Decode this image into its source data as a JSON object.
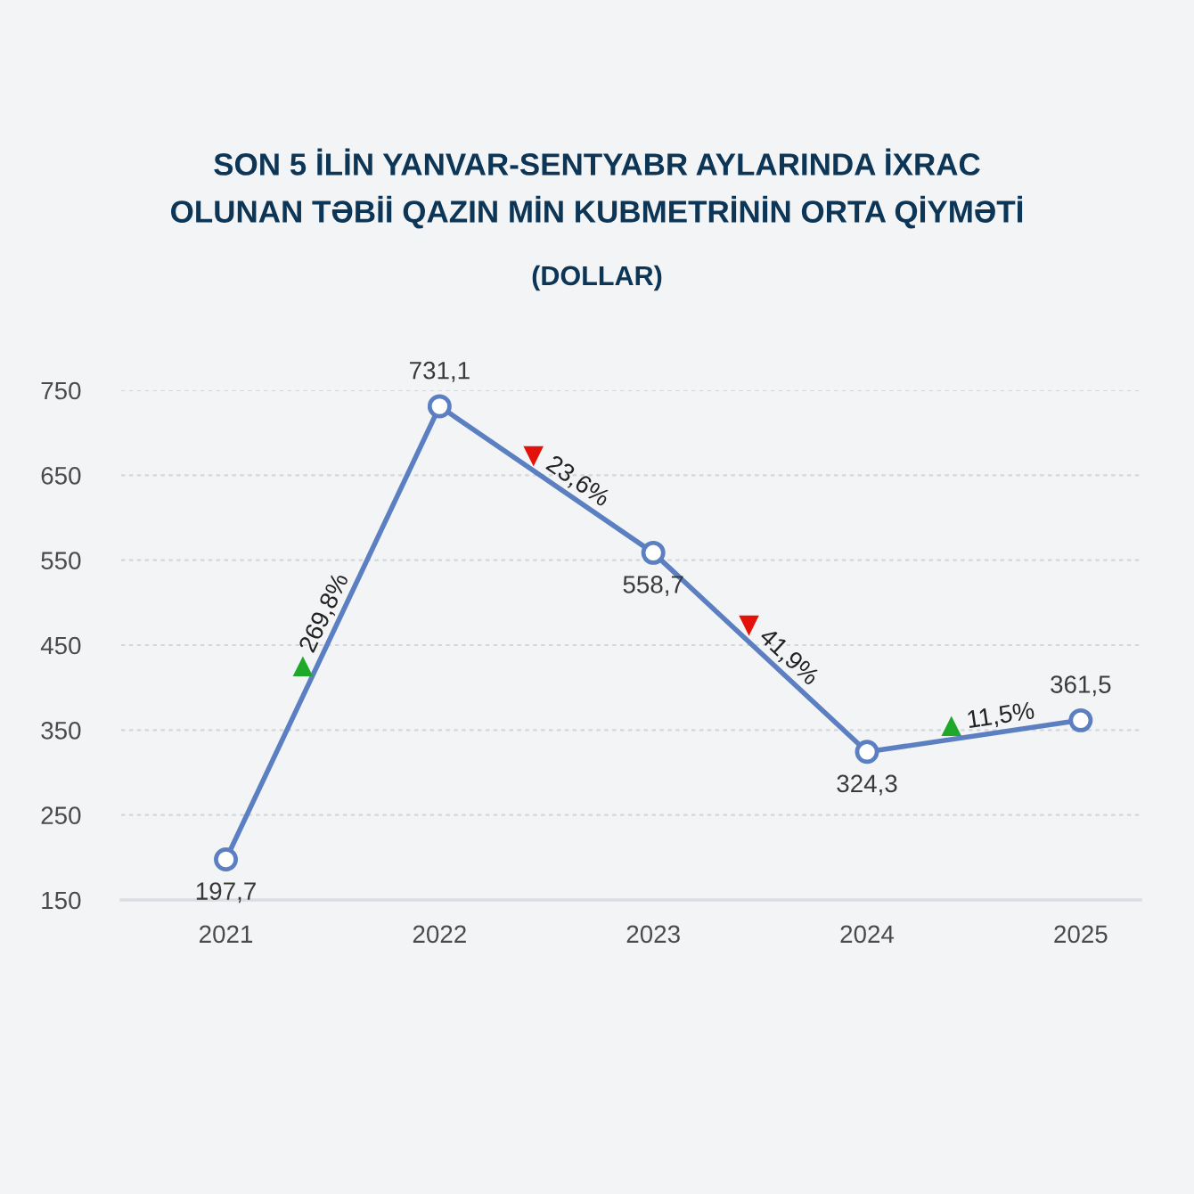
{
  "chart_data": {
    "type": "line",
    "title": "SON 5 İLİN YANVAR-SENTYABR AYLARINDA İXRAC\nOLUNAN TƏBİİ QAZIN MİN KUBMETRİNİN ORTA QİYMƏTİ",
    "subtitle": "(DOLLAR)",
    "categories": [
      "2021",
      "2022",
      "2023",
      "2024",
      "2025"
    ],
    "series": [
      {
        "color": "#5b7fc1",
        "values": [
          197.7,
          731.1,
          558.7,
          324.3,
          361.5
        ],
        "value_labels": [
          "197,7",
          "731,1",
          "558,7",
          "324,3",
          "361,5"
        ]
      }
    ],
    "annotations": [
      "269,8%",
      "23,6%",
      "41,9%",
      "11,5%"
    ],
    "ylim": [
      150,
      750
    ],
    "yticks": [
      150,
      250,
      350,
      450,
      550,
      650,
      750
    ],
    "grid": "y",
    "marker": "circle",
    "line_style": "solid",
    "legend": false
  }
}
